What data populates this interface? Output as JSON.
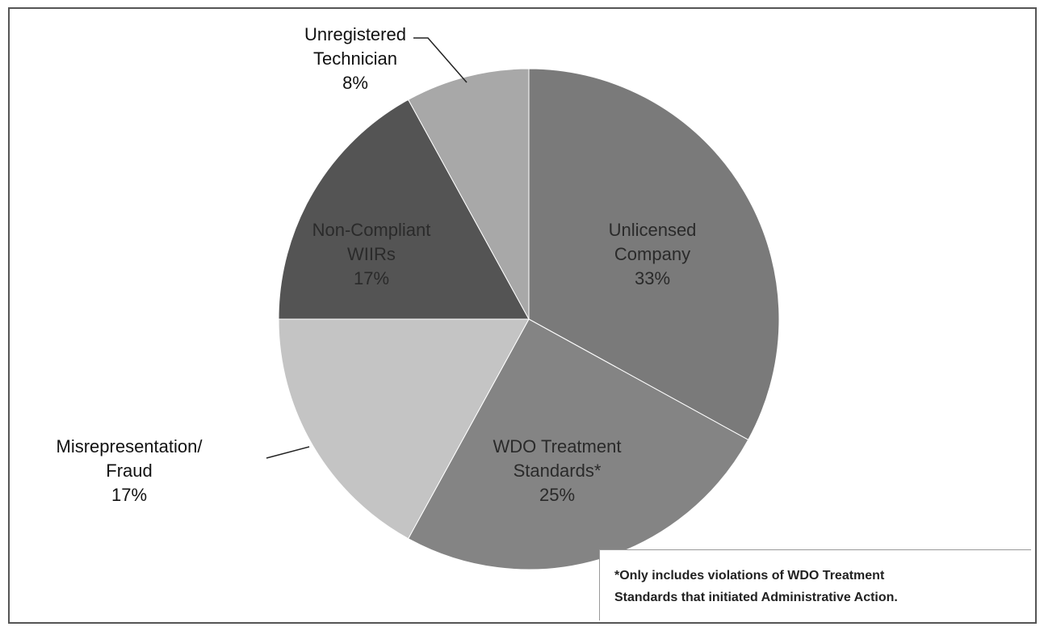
{
  "chart_data": {
    "type": "pie",
    "title": "",
    "slices": [
      {
        "label_lines": [
          "Unlicensed",
          "Company"
        ],
        "pct_label": "33%",
        "value": 33,
        "color": "#7a7a7a"
      },
      {
        "label_lines": [
          "WDO Treatment",
          "Standards*"
        ],
        "pct_label": "25%",
        "value": 25,
        "color": "#848484"
      },
      {
        "label_lines": [
          "Misrepresentation/",
          "Fraud"
        ],
        "pct_label": "17%",
        "value": 17,
        "color": "#c4c4c4"
      },
      {
        "label_lines": [
          "Non-Compliant",
          "WIIRs"
        ],
        "pct_label": "17%",
        "value": 17,
        "color": "#545454"
      },
      {
        "label_lines": [
          "Unregistered",
          "Technician"
        ],
        "pct_label": "8%",
        "value": 8,
        "color": "#a8a8a8"
      }
    ],
    "footnote": {
      "line1": "*Only includes violations of WDO Treatment",
      "line2": "Standards that initiated Administrative Action."
    }
  }
}
